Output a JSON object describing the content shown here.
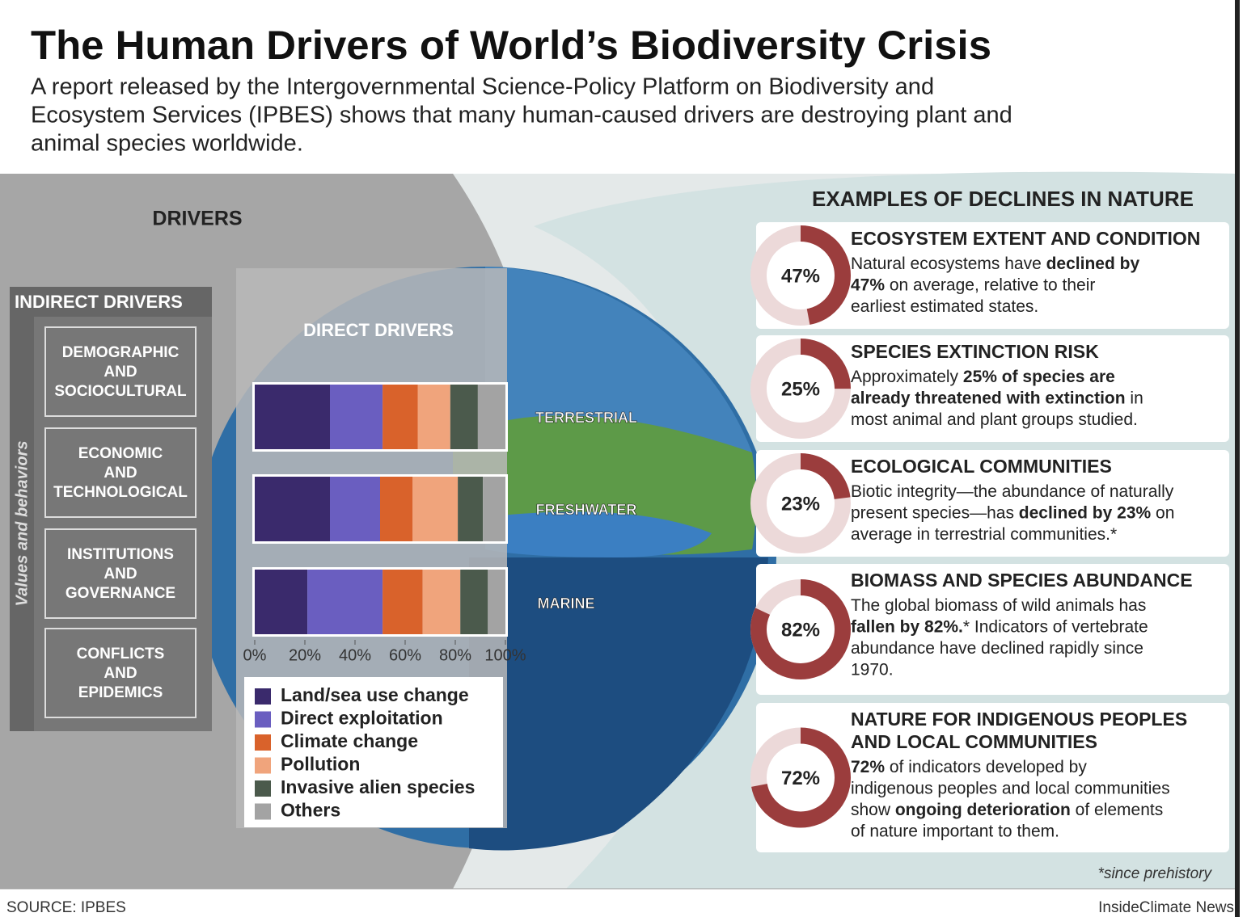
{
  "header": {
    "title": "The Human Drivers of World’s Biodiversity Crisis",
    "subtitle": [
      "A report released by the Intergovernmental Science-Policy Platform on Biodiversity and",
      "Ecosystem Services (IPBES) shows that many human-caused drivers are destroying plant and",
      "animal species worldwide."
    ]
  },
  "drivers_heading": "DRIVERS",
  "indirect": {
    "heading": "INDIRECT DRIVERS",
    "side_label": "Values and behaviors",
    "items": [
      [
        "DEMOGRAPHIC",
        "AND",
        "SOCIOCULTURAL"
      ],
      [
        "ECONOMIC",
        "AND",
        "TECHNOLOGICAL"
      ],
      [
        "INSTITUTIONS",
        "AND",
        "GOVERNANCE"
      ],
      [
        "CONFLICTS",
        "AND",
        "EPIDEMICS"
      ]
    ]
  },
  "chart_data": {
    "type": "stacked-bar",
    "orientation": "horizontal",
    "title": "DIRECT DRIVERS",
    "categories": [
      "TERRESTRIAL",
      "FRESHWATER",
      "MARINE"
    ],
    "series": [
      {
        "name": "Land/sea use change",
        "color": "#3a2a6c",
        "values": [
          30,
          30,
          21
        ]
      },
      {
        "name": "Direct exploitation",
        "color": "#6a5ec0",
        "values": [
          21,
          20,
          30
        ]
      },
      {
        "name": "Climate change",
        "color": "#d9622b",
        "values": [
          14,
          13,
          16
        ]
      },
      {
        "name": "Pollution",
        "color": "#f0a47c",
        "values": [
          13,
          18,
          15
        ]
      },
      {
        "name": "Invasive alien species",
        "color": "#4b5a4c",
        "values": [
          11,
          10,
          11
        ]
      },
      {
        "name": "Others",
        "color": "#a3a3a3",
        "values": [
          11,
          9,
          7
        ]
      }
    ],
    "xlim": [
      0,
      100
    ],
    "xticks": [
      {
        "value": 0,
        "label": "0%"
      },
      {
        "value": 20,
        "label": "20%"
      },
      {
        "value": 40,
        "label": "40%"
      },
      {
        "value": 60,
        "label": "60%"
      },
      {
        "value": 80,
        "label": "80%"
      },
      {
        "value": 100,
        "label": "100%"
      }
    ]
  },
  "examples": {
    "heading": "EXAMPLES OF DECLINES IN NATURE",
    "color": "#9b3d3d",
    "items": [
      {
        "title": [
          "ECOSYSTEM EXTENT AND CONDITION"
        ],
        "value": 47,
        "value_label": "47%",
        "desc": [
          [
            {
              "t": "Natural ecosystems have ",
              "b": false
            },
            {
              "t": "declined by",
              "b": true
            }
          ],
          [
            {
              "t": "47%",
              "b": true
            },
            {
              "t": " on average, relative to their",
              "b": false
            }
          ],
          [
            {
              "t": "earliest estimated states.",
              "b": false
            }
          ]
        ]
      },
      {
        "title": [
          "SPECIES EXTINCTION RISK"
        ],
        "value": 25,
        "value_label": "25%",
        "desc": [
          [
            {
              "t": "Approximately ",
              "b": false
            },
            {
              "t": "25% of species are",
              "b": true
            }
          ],
          [
            {
              "t": "already threatened with extinction",
              "b": true
            },
            {
              "t": " in",
              "b": false
            }
          ],
          [
            {
              "t": "most animal and plant groups studied.",
              "b": false
            }
          ]
        ]
      },
      {
        "title": [
          "ECOLOGICAL COMMUNITIES"
        ],
        "value": 23,
        "value_label": "23%",
        "desc": [
          [
            {
              "t": "Biotic integrity—the abundance of naturally",
              "b": false
            }
          ],
          [
            {
              "t": "present species—has ",
              "b": false
            },
            {
              "t": "declined by 23%",
              "b": true
            },
            {
              "t": " on",
              "b": false
            }
          ],
          [
            {
              "t": "average in terrestrial communities.*",
              "b": false
            }
          ]
        ]
      },
      {
        "title": [
          "BIOMASS AND SPECIES ABUNDANCE"
        ],
        "value": 82,
        "value_label": "82%",
        "desc": [
          [
            {
              "t": "The global biomass of wild animals has",
              "b": false
            }
          ],
          [
            {
              "t": "fallen by 82%.",
              "b": true
            },
            {
              "t": "* Indicators of vertebrate",
              "b": false
            }
          ],
          [
            {
              "t": "abundance have declined rapidly since",
              "b": false
            }
          ],
          [
            {
              "t": "1970.",
              "b": false
            }
          ]
        ]
      },
      {
        "title": [
          "NATURE FOR INDIGENOUS PEOPLES",
          "AND LOCAL COMMUNITIES"
        ],
        "value": 72,
        "value_label": "72%",
        "desc": [
          [
            {
              "t": "72%",
              "b": true
            },
            {
              "t": " of indicators developed by",
              "b": false
            }
          ],
          [
            {
              "t": "indigenous peoples and local communities",
              "b": false
            }
          ],
          [
            {
              "t": "show ",
              "b": false
            },
            {
              "t": "ongoing deterioration",
              "b": true
            },
            {
              "t": " of elements",
              "b": false
            }
          ],
          [
            {
              "t": "of nature important to them.",
              "b": false
            }
          ]
        ]
      }
    ]
  },
  "footnote": "*since prehistory",
  "source": "SOURCE: IPBES",
  "credit": "InsideClimate News"
}
